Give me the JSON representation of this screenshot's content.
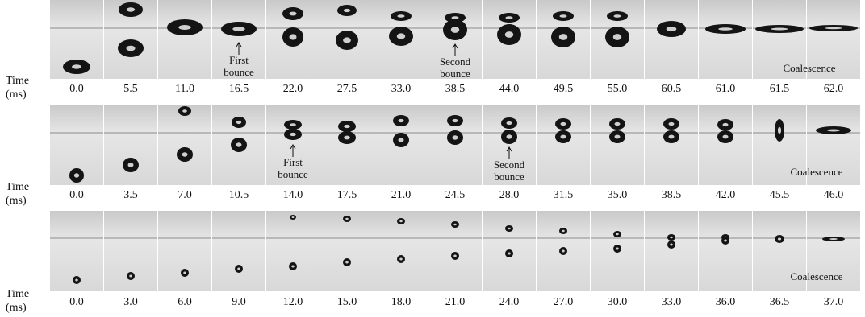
{
  "rows": [
    {
      "axis_label": [
        "Time",
        "(ms)"
      ],
      "times": [
        "0.0",
        "5.5",
        "11.0",
        "16.5",
        "22.0",
        "27.5",
        "33.0",
        "38.5",
        "44.0",
        "49.5",
        "55.0",
        "60.5",
        "61.0",
        "61.5",
        "62.0"
      ],
      "annotations": [
        {
          "lines": [
            "First",
            "bounce"
          ]
        },
        {
          "lines": [
            "Second",
            "bounce"
          ]
        },
        {
          "lines": [
            "Coalescence"
          ]
        }
      ]
    },
    {
      "axis_label": [
        "Time",
        "(ms)"
      ],
      "times": [
        "0.0",
        "3.5",
        "7.0",
        "10.5",
        "14.0",
        "17.5",
        "21.0",
        "24.5",
        "28.0",
        "31.5",
        "35.0",
        "38.5",
        "42.0",
        "45.5",
        "46.0"
      ],
      "annotations": [
        {
          "lines": [
            "First",
            "bounce"
          ]
        },
        {
          "lines": [
            "Second",
            "bounce"
          ]
        },
        {
          "lines": [
            "Coalescence"
          ]
        }
      ]
    },
    {
      "axis_label": [
        "Time",
        "(ms)"
      ],
      "times": [
        "0.0",
        "3.0",
        "6.0",
        "9.0",
        "12.0",
        "15.0",
        "18.0",
        "21.0",
        "24.0",
        "27.0",
        "30.0",
        "33.0",
        "36.0",
        "36.5",
        "37.0"
      ],
      "annotations": [
        {
          "lines": [
            "Coalescence"
          ]
        }
      ]
    }
  ]
}
